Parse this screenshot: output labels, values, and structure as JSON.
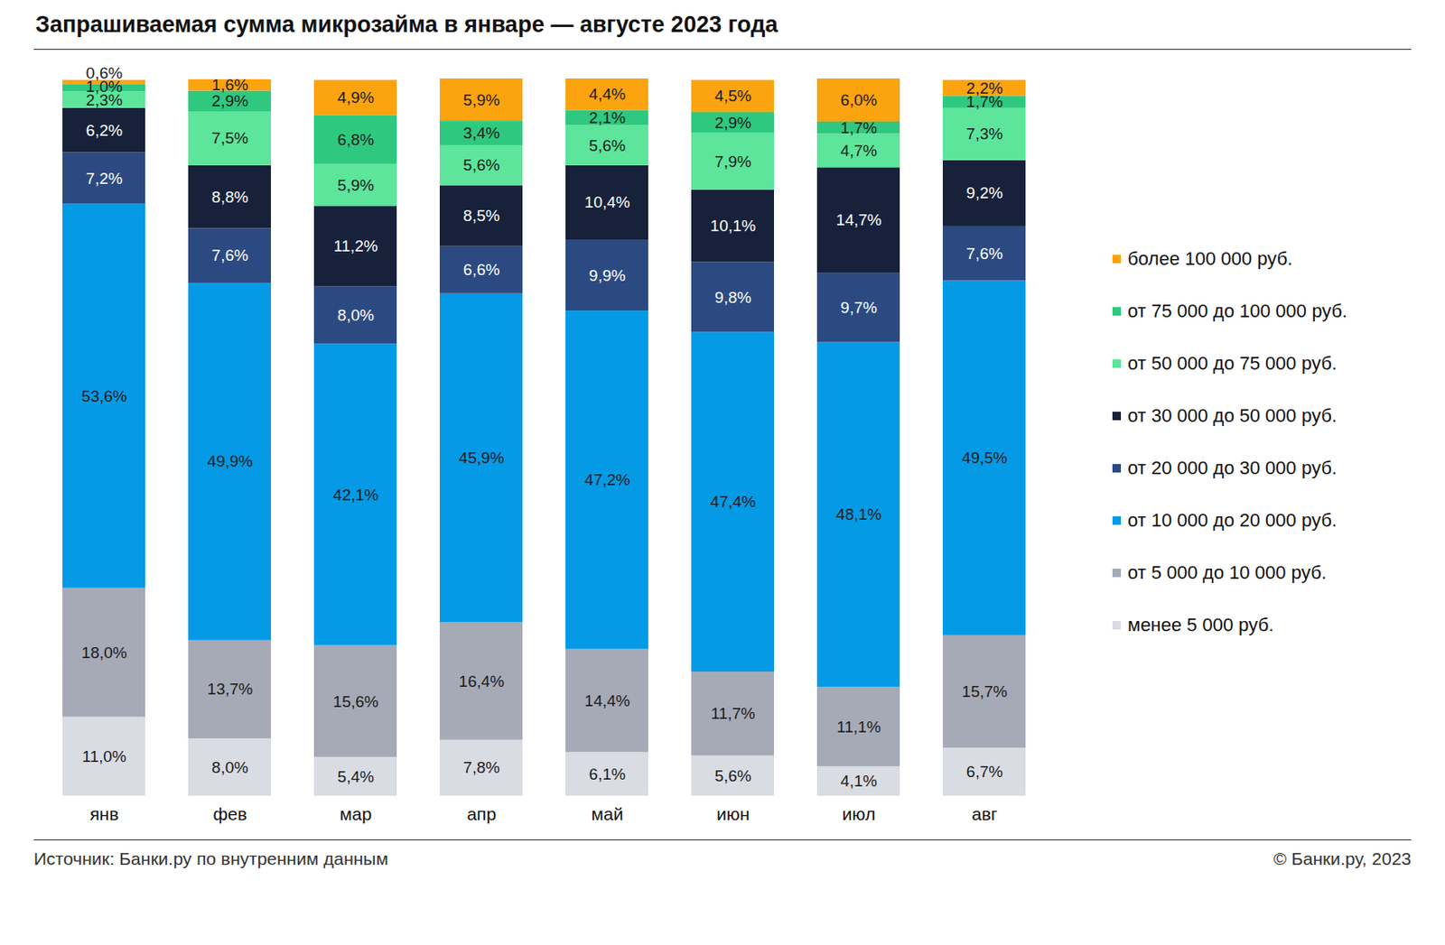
{
  "chart_data": {
    "type": "bar",
    "title": "Запрашиваемая сумма микрозайма в январе — августе 2023 года",
    "source": "Источник: Банки.ру по внутренним данным",
    "copyright": "© Банки.ру, 2023",
    "stacked": true,
    "data_labels": true,
    "tick_labels": "x",
    "legend": "right",
    "categories": [
      "янв",
      "фев",
      "мар",
      "апр",
      "май",
      "июн",
      "июл",
      "авг"
    ],
    "series": [
      {
        "name": "менее 5 000 руб.",
        "color": "#dadce3",
        "values": [
          11.0,
          8.0,
          5.4,
          7.8,
          6.1,
          5.6,
          4.1,
          6.7
        ],
        "value_labels": [
          "11,0%",
          "8,0%",
          "5,4%",
          "7,8%",
          "6,1%",
          "5,6%",
          "4,1%",
          "6,7%"
        ]
      },
      {
        "name": "от 5 000 до 10 000 руб.",
        "color": "#a6aab6",
        "values": [
          18.0,
          13.7,
          15.6,
          16.4,
          14.4,
          11.7,
          11.1,
          15.7
        ],
        "value_labels": [
          "18,0%",
          "13,7%",
          "15,6%",
          "16,4%",
          "14,4%",
          "11,7%",
          "11,1%",
          "15,7%"
        ]
      },
      {
        "name": "от 10 000 до 20 000 руб.",
        "color": "#049ae5",
        "values": [
          53.6,
          49.9,
          42.1,
          45.9,
          47.2,
          47.4,
          48.1,
          49.5
        ],
        "value_labels": [
          "53,6%",
          "49,9%",
          "42,1%",
          "45,9%",
          "47,2%",
          "47,4%",
          "48,1%",
          "49,5%"
        ]
      },
      {
        "name": "от 20 000 до 30 000 руб.",
        "color": "#2c4a82",
        "values": [
          7.2,
          7.6,
          8.0,
          6.6,
          9.9,
          9.8,
          9.7,
          7.6
        ],
        "value_labels": [
          "7,2%",
          "7,6%",
          "8,0%",
          "6,6%",
          "9,9%",
          "9,8%",
          "9,7%",
          "7,6%"
        ]
      },
      {
        "name": "от 30 000 до 50 000 руб.",
        "color": "#17223a",
        "values": [
          6.2,
          8.8,
          11.2,
          8.5,
          10.4,
          10.1,
          14.7,
          9.2
        ],
        "value_labels": [
          "6,2%",
          "8,8%",
          "11,2%",
          "8,5%",
          "10,4%",
          "10,1%",
          "14,7%",
          "9,2%"
        ]
      },
      {
        "name": "от 50 000 до 75 000 руб.",
        "color": "#5ce59b",
        "values": [
          2.3,
          7.5,
          5.9,
          5.6,
          5.6,
          7.9,
          4.7,
          7.3
        ],
        "value_labels": [
          "2,3%",
          "7,5%",
          "5,9%",
          "5,6%",
          "5,6%",
          "7,9%",
          "4,7%",
          "7,3%"
        ]
      },
      {
        "name": "от 75 000 до 100 000 руб.",
        "color": "#2ec97f",
        "values": [
          1.0,
          2.9,
          6.8,
          3.4,
          2.1,
          2.9,
          1.7,
          1.7
        ],
        "value_labels": [
          "1,0%",
          "2,9%",
          "6,8%",
          "3,4%",
          "2,1%",
          "2,9%",
          "1,7%",
          "1,7%"
        ]
      },
      {
        "name": "более 100 000 руб.",
        "color": "#fba40f",
        "values": [
          0.6,
          1.6,
          4.9,
          5.9,
          4.4,
          4.5,
          6.0,
          2.2
        ],
        "value_labels": [
          "0,6%",
          "1,6%",
          "4,9%",
          "5,9%",
          "4,4%",
          "4,5%",
          "6,0%",
          "2,2%"
        ]
      }
    ]
  }
}
